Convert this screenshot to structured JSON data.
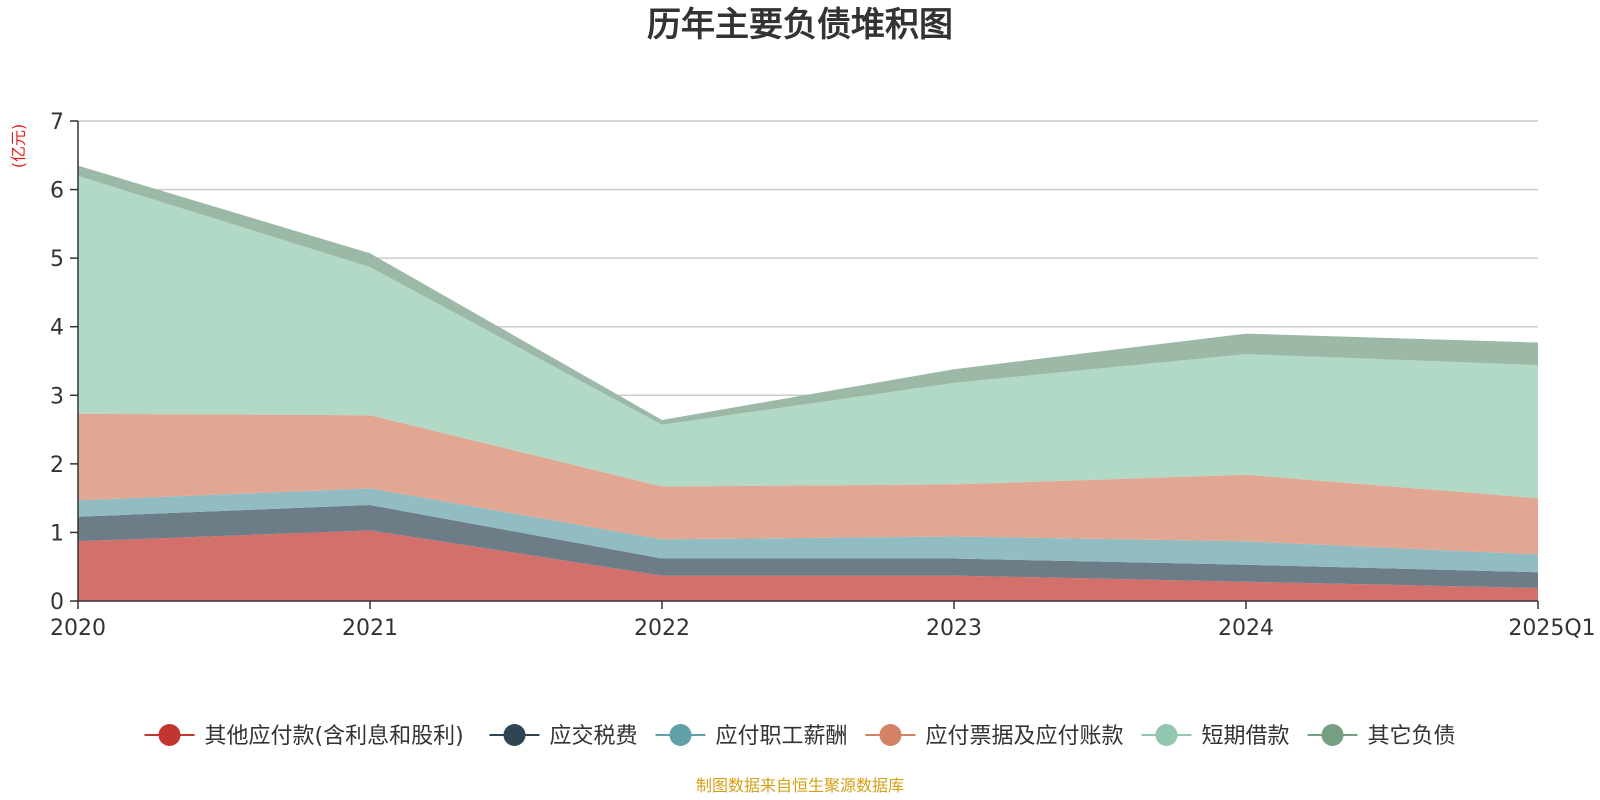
{
  "chart_data": {
    "type": "area",
    "stacked": true,
    "title": "历年主要负债堆积图",
    "unit_label": "(亿元)",
    "xlabel": "",
    "ylabel": "(亿元)",
    "categories": [
      "2020",
      "2021",
      "2022",
      "2023",
      "2024",
      "2025Q1"
    ],
    "ylim": [
      0,
      7
    ],
    "yticks": [
      0,
      1,
      2,
      3,
      4,
      5,
      6,
      7
    ],
    "grid": true,
    "legend_position": "bottom",
    "series": [
      {
        "name": "其他应付款(含利息和股利)",
        "color": "#c23531",
        "fill": "#d4706c",
        "values": [
          0.87,
          1.03,
          0.37,
          0.37,
          0.28,
          0.19
        ]
      },
      {
        "name": "应交税费",
        "color": "#2f4554",
        "fill": "#6d7d87",
        "values": [
          0.36,
          0.37,
          0.25,
          0.25,
          0.25,
          0.23
        ]
      },
      {
        "name": "应付职工薪酬",
        "color": "#61a0a8",
        "fill": "#90bcc2",
        "values": [
          0.24,
          0.24,
          0.28,
          0.32,
          0.34,
          0.26
        ]
      },
      {
        "name": "应付票据及应付账款",
        "color": "#d48265",
        "fill": "#e1a792",
        "values": [
          1.26,
          1.07,
          0.77,
          0.76,
          0.97,
          0.82
        ]
      },
      {
        "name": "短期借款",
        "color": "#91c7ae",
        "fill": "#b2d8c6",
        "values": [
          3.47,
          2.16,
          0.9,
          1.48,
          1.76,
          1.94
        ]
      },
      {
        "name": "其它负债",
        "color": "#749f83",
        "fill": "#9cb9a7",
        "values": [
          0.15,
          0.2,
          0.07,
          0.2,
          0.3,
          0.33
        ]
      }
    ]
  },
  "footer": {
    "source": "制图数据来自恒生聚源数据库"
  }
}
